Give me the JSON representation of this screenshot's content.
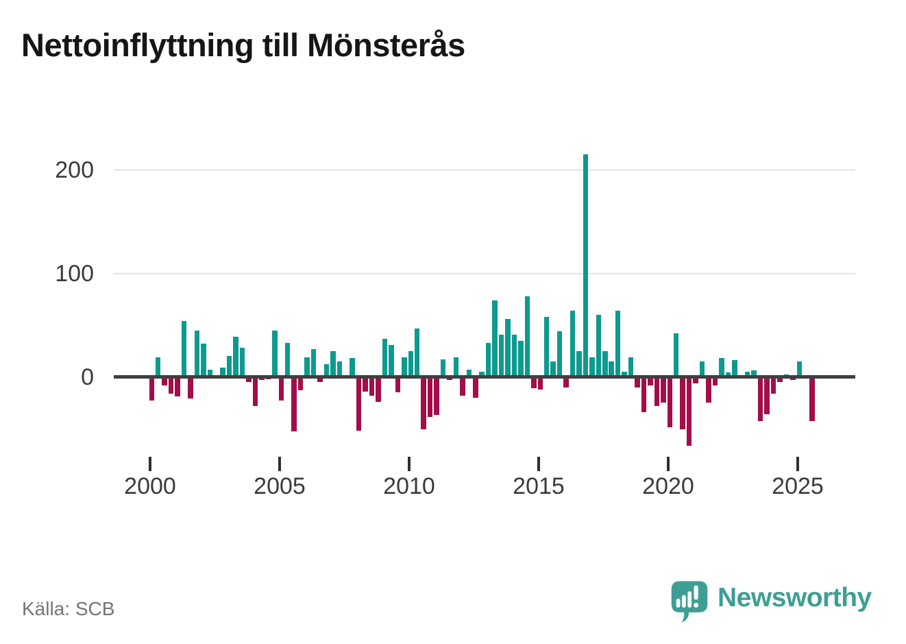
{
  "title": "Nettoinflyttning till Mönsterås",
  "source": "Källa: SCB",
  "branding": {
    "name": "Newsworthy",
    "icon": "newsworthy-speech-bubble-chart-icon"
  },
  "colors": {
    "positive_bar": "#0d9a8f",
    "negative_bar": "#a30d4a",
    "zero_axis": "#3f3f3f",
    "gridline": "#e4e4e4",
    "axis_text": "#3a3a3a",
    "source_text": "#757575",
    "brand_teal": "#3d9e95",
    "title_text": "#161616"
  },
  "chart_data": {
    "type": "bar",
    "title": "Nettoinflyttning till Mönsterås",
    "ylabel": "",
    "xlabel": "",
    "frequency": "quarterly",
    "x_start": "2000 Q1",
    "x_end": "2025 Q3",
    "y_ticks": [
      0,
      100,
      200
    ],
    "ylim": [
      -80,
      230
    ],
    "grid": "horizontal",
    "legend": "none",
    "x_tick_years": [
      2000,
      2005,
      2010,
      2015,
      2020,
      2025
    ],
    "categories": [
      "2000 Q1",
      "2000 Q2",
      "2000 Q3",
      "2000 Q4",
      "2001 Q1",
      "2001 Q2",
      "2001 Q3",
      "2001 Q4",
      "2002 Q1",
      "2002 Q2",
      "2002 Q3",
      "2002 Q4",
      "2003 Q1",
      "2003 Q2",
      "2003 Q3",
      "2003 Q4",
      "2004 Q1",
      "2004 Q2",
      "2004 Q3",
      "2004 Q4",
      "2005 Q1",
      "2005 Q2",
      "2005 Q3",
      "2005 Q4",
      "2006 Q1",
      "2006 Q2",
      "2006 Q3",
      "2006 Q4",
      "2007 Q1",
      "2007 Q2",
      "2007 Q3",
      "2007 Q4",
      "2008 Q1",
      "2008 Q2",
      "2008 Q3",
      "2008 Q4",
      "2009 Q1",
      "2009 Q2",
      "2009 Q3",
      "2009 Q4",
      "2010 Q1",
      "2010 Q2",
      "2010 Q3",
      "2010 Q4",
      "2011 Q1",
      "2011 Q2",
      "2011 Q3",
      "2011 Q4",
      "2012 Q1",
      "2012 Q2",
      "2012 Q3",
      "2012 Q4",
      "2013 Q1",
      "2013 Q2",
      "2013 Q3",
      "2013 Q4",
      "2014 Q1",
      "2014 Q2",
      "2014 Q3",
      "2014 Q4",
      "2015 Q1",
      "2015 Q2",
      "2015 Q3",
      "2015 Q4",
      "2016 Q1",
      "2016 Q2",
      "2016 Q3",
      "2016 Q4",
      "2017 Q1",
      "2017 Q2",
      "2017 Q3",
      "2017 Q4",
      "2018 Q1",
      "2018 Q2",
      "2018 Q3",
      "2018 Q4",
      "2019 Q1",
      "2019 Q2",
      "2019 Q3",
      "2019 Q4",
      "2020 Q1",
      "2020 Q2",
      "2020 Q3",
      "2020 Q4",
      "2021 Q1",
      "2021 Q2",
      "2021 Q3",
      "2021 Q4",
      "2022 Q1",
      "2022 Q2",
      "2022 Q3",
      "2022 Q4",
      "2023 Q1",
      "2023 Q2",
      "2023 Q3",
      "2023 Q4",
      "2024 Q1",
      "2024 Q2",
      "2024 Q3",
      "2024 Q4",
      "2025 Q1",
      "2025 Q2",
      "2025 Q3"
    ],
    "values": [
      -23,
      19,
      -8,
      -16,
      -19,
      54,
      -21,
      45,
      32,
      7,
      0,
      9,
      20,
      39,
      28,
      -5,
      -28,
      -3,
      -2,
      45,
      -23,
      33,
      -53,
      -13,
      19,
      27,
      -5,
      12,
      25,
      15,
      0,
      18,
      -52,
      -14,
      -18,
      -24,
      37,
      31,
      -15,
      19,
      25,
      47,
      -51,
      -39,
      -37,
      17,
      -3,
      19,
      -18,
      7,
      -20,
      5,
      33,
      74,
      41,
      56,
      41,
      35,
      78,
      -11,
      -12,
      58,
      15,
      44,
      -10,
      64,
      25,
      215,
      19,
      60,
      25,
      15,
      64,
      5,
      19,
      -10,
      -34,
      -8,
      -28,
      -25,
      -49,
      42,
      -51,
      -67,
      -6,
      15,
      -25,
      -8,
      18,
      4,
      16,
      0,
      5,
      6,
      -43,
      -36,
      -16,
      -5,
      2,
      -3,
      15,
      0,
      -43
    ]
  }
}
